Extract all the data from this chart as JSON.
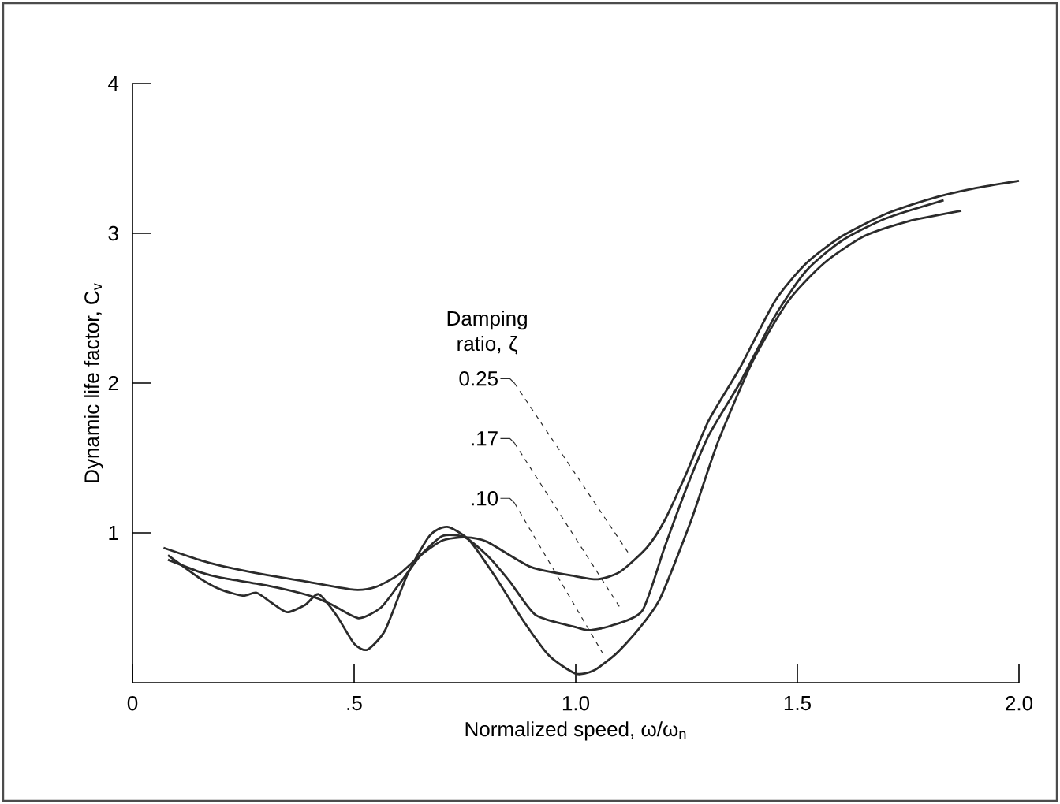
{
  "chart_data": {
    "type": "line",
    "xlabel": "Normalized speed, ω/ω$_{n}$",
    "ylabel": "Dynamic life factor, C$_{v}$",
    "legend_title": "Damping ratio, ζ",
    "xlim": [
      0,
      2.0
    ],
    "ylim": [
      0,
      4
    ],
    "xticks": [
      0,
      {
        "value": 0.5,
        "label": ".5"
      },
      {
        "value": 1.0,
        "label": "1.0"
      },
      1.5,
      {
        "value": 2.0,
        "label": "2.0"
      }
    ],
    "yticks": [
      1,
      2,
      3,
      4
    ],
    "grid": false,
    "legend": "center",
    "marker": "none",
    "line_style": "solid",
    "series": [
      {
        "name": "0.25",
        "color": "#2b2b2b",
        "x": [
          0.07,
          0.15,
          0.2,
          0.3,
          0.4,
          0.5,
          0.55,
          0.6,
          0.65,
          0.7,
          0.75,
          0.8,
          0.9,
          1.0,
          1.05,
          1.1,
          1.16,
          1.2,
          1.25,
          1.3,
          1.37,
          1.45,
          1.52,
          1.6,
          1.7,
          1.8,
          1.9,
          2.0
        ],
        "values": [
          0.9,
          0.82,
          0.78,
          0.72,
          0.67,
          0.62,
          0.64,
          0.72,
          0.85,
          0.95,
          0.97,
          0.94,
          0.77,
          0.71,
          0.69,
          0.74,
          0.9,
          1.08,
          1.4,
          1.75,
          2.1,
          2.55,
          2.8,
          2.98,
          3.13,
          3.23,
          3.3,
          3.35
        ]
      },
      {
        "name": ".17",
        "color": "#2b2b2b",
        "x": [
          0.08,
          0.15,
          0.2,
          0.3,
          0.4,
          0.45,
          0.51,
          0.56,
          0.6,
          0.65,
          0.7,
          0.75,
          0.8,
          0.85,
          0.91,
          1.0,
          1.03,
          1.08,
          1.15,
          1.2,
          1.25,
          1.3,
          1.37,
          1.45,
          1.52,
          1.6,
          1.7,
          1.83
        ],
        "values": [
          0.82,
          0.74,
          0.7,
          0.65,
          0.58,
          0.52,
          0.43,
          0.5,
          0.65,
          0.85,
          0.98,
          0.97,
          0.85,
          0.68,
          0.45,
          0.37,
          0.35,
          0.38,
          0.48,
          0.9,
          1.3,
          1.65,
          2.0,
          2.45,
          2.75,
          2.95,
          3.1,
          3.22
        ]
      },
      {
        "name": ".10",
        "color": "#2b2b2b",
        "x": [
          0.08,
          0.15,
          0.2,
          0.25,
          0.28,
          0.32,
          0.35,
          0.39,
          0.42,
          0.46,
          0.5,
          0.53,
          0.57,
          0.62,
          0.67,
          0.71,
          0.76,
          0.82,
          0.88,
          0.94,
          1.0,
          1.04,
          1.09,
          1.14,
          1.19,
          1.26,
          1.32,
          1.4,
          1.48,
          1.56,
          1.65,
          1.75,
          1.87
        ],
        "values": [
          0.85,
          0.7,
          0.62,
          0.58,
          0.6,
          0.52,
          0.47,
          0.52,
          0.59,
          0.45,
          0.26,
          0.22,
          0.35,
          0.72,
          0.98,
          1.04,
          0.95,
          0.7,
          0.42,
          0.18,
          0.06,
          0.08,
          0.19,
          0.35,
          0.56,
          1.08,
          1.6,
          2.15,
          2.55,
          2.8,
          2.98,
          3.08,
          3.15
        ]
      }
    ]
  }
}
